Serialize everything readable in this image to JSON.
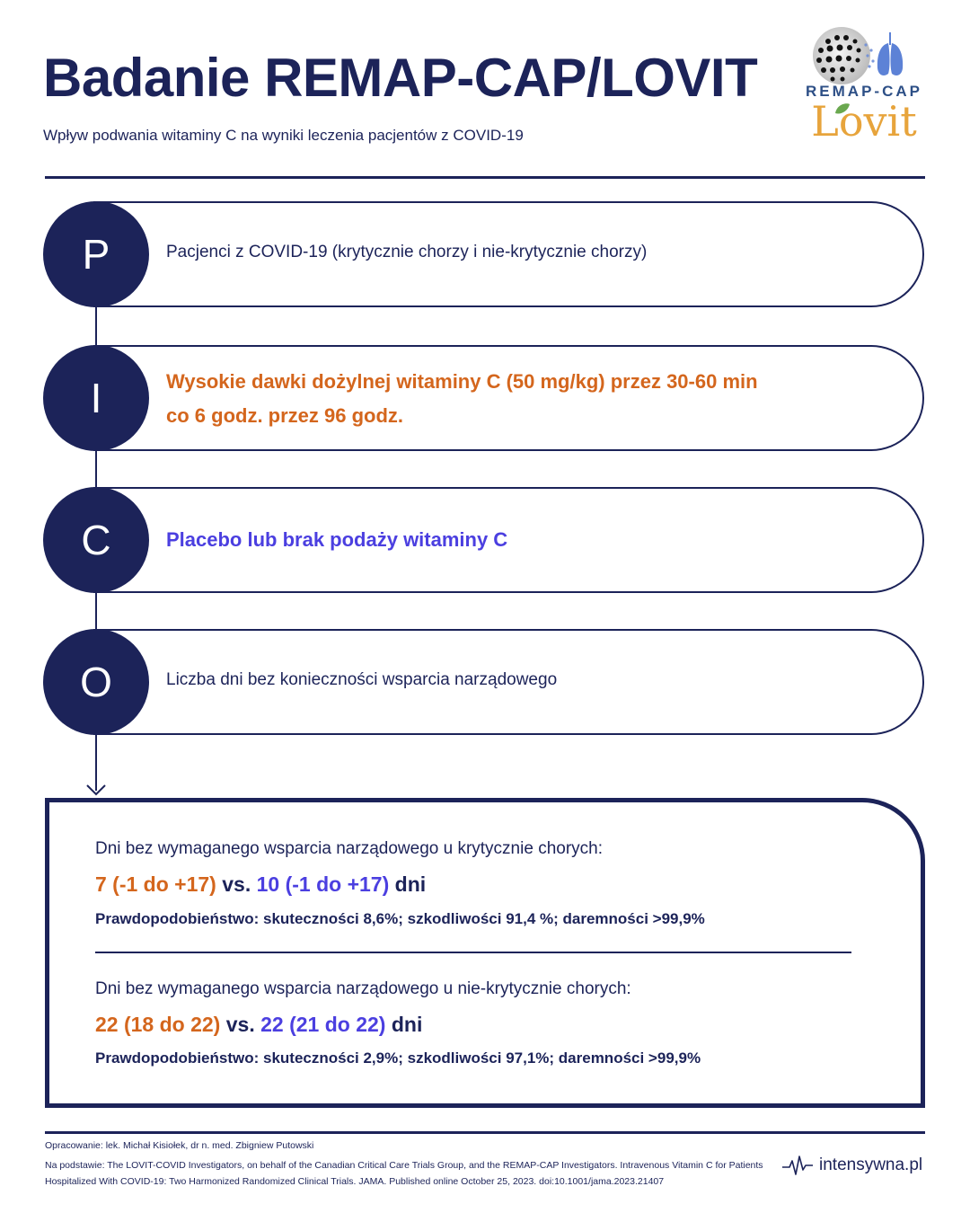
{
  "header": {
    "title": "Badanie REMAP-CAP/LOVIT",
    "subtitle": "Wpływ podwania witaminy C na wyniki leczenia pacjentów z COVID-19"
  },
  "logos": {
    "remap_cap": "REMAP-CAP",
    "lovit": "Lovit"
  },
  "pico": [
    {
      "letter": "P",
      "text": "Pacjenci z COVID-19 (krytycznie chorzy i nie-krytycznie chorzy)"
    },
    {
      "letter": "I",
      "text_line1": "Wysokie dawki dożylnej witaminy C (50 mg/kg) przez 30-60 min",
      "text_line2": "co 6 godz. przez 96 godz."
    },
    {
      "letter": "C",
      "text": "Placebo lub brak podaży witaminy C"
    },
    {
      "letter": "O",
      "text": "Liczba dni bez konieczności wsparcia narządowego"
    }
  ],
  "results": {
    "critical": {
      "label": "Dni bez wymaganego wsparcia narządowego u krytycznie chorych:",
      "intervention_value": "7 (-1 do +17)",
      "vs": "vs.",
      "control_value": "10 (-1 do +17)",
      "unit": "dni",
      "probability": "Prawdopodobieństwo: skuteczności 8,6%; szkodliwości 91,4 %; daremności >99,9%"
    },
    "non_critical": {
      "label": "Dni bez wymaganego wsparcia narządowego u nie-krytycznie chorych:",
      "intervention_value": "22 (18 do 22)",
      "vs": "vs.",
      "control_value": "22 (21 do 22)",
      "unit": "dni",
      "probability": "Prawdopodobieństwo: skuteczności 2,9%; szkodliwości 97,1%; daremności >99,9%"
    }
  },
  "footer": {
    "credit": "Opracowanie: lek. Michał Kisiołek, dr n. med. Zbigniew Putowski",
    "source": "Na podstawie: The LOVIT-COVID Investigators, on behalf of the Canadian Critical Care Trials Group, and the REMAP-CAP Investigators. Intravenous Vitamin C for Patients Hospitalized With COVID-19: Two Harmonized Randomized Clinical Trials. JAMA. Published online October 25, 2023. doi:10.1001/jama.2023.21407",
    "brand": "intensywna.pl"
  },
  "colors": {
    "navy": "#1c2359",
    "orange": "#d4661d",
    "purple": "#4b3fe0",
    "remap_blue": "#2d4f86",
    "lovit_gold": "#e7a43c",
    "lovit_leaf": "#6aa84f"
  },
  "icons": {
    "remap_cap_logo": "dotted-globe-with-lungs-icon",
    "lovit_logo": "lovit-leaf-icon",
    "brand_logo": "heartbeat-wave-icon",
    "timeline_end": "arrow-down-icon"
  }
}
